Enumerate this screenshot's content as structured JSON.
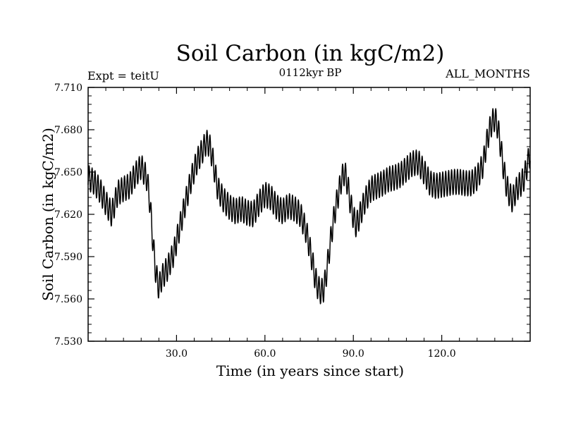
{
  "chart_data": {
    "type": "line",
    "title": "Soil Carbon (in kgC/m2)",
    "subtitle": "0112kyr BP",
    "left_label": "Expt = teitU",
    "right_label": "ALL_MONTHS",
    "xlabel": "Time (in years since start)",
    "ylabel": "Soil Carbon (in kgC/m2)",
    "xlim": [
      0,
      150
    ],
    "ylim": [
      7.53,
      7.71
    ],
    "xticks": [
      30,
      60,
      90,
      120
    ],
    "xtick_labels": [
      "30.0",
      "60.0",
      "90.0",
      "120.0"
    ],
    "yticks": [
      7.53,
      7.56,
      7.59,
      7.62,
      7.65,
      7.68,
      7.71
    ],
    "ytick_labels": [
      "7.530",
      "7.560",
      "7.590",
      "7.620",
      "7.650",
      "7.680",
      "7.710"
    ],
    "grid": false,
    "series": [
      {
        "name": "Soil Carbon",
        "color": "#000000",
        "seasonal_amplitude": 0.009,
        "trend_x": [
          0,
          2,
          4,
          6,
          8,
          10,
          12,
          14,
          16,
          18,
          20,
          21,
          22,
          23,
          24,
          25,
          27,
          29,
          31,
          33,
          35,
          37,
          39,
          40,
          41,
          42,
          43,
          44,
          46,
          48,
          50,
          52,
          54,
          56,
          58,
          60,
          62,
          64,
          66,
          68,
          70,
          72,
          74,
          76,
          77,
          78,
          79,
          80,
          81,
          82,
          83,
          84,
          85,
          86,
          87,
          88,
          89,
          90,
          91,
          92,
          94,
          96,
          98,
          100,
          102,
          104,
          106,
          108,
          110,
          112,
          114,
          116,
          118,
          120,
          122,
          124,
          126,
          128,
          130,
          132,
          134,
          135,
          136,
          137,
          138,
          139,
          140,
          141,
          142,
          143,
          144,
          145,
          146,
          147,
          148,
          149,
          150
        ],
        "trend_y": [
          7.646,
          7.643,
          7.637,
          7.628,
          7.62,
          7.635,
          7.638,
          7.64,
          7.648,
          7.654,
          7.645,
          7.628,
          7.6,
          7.578,
          7.568,
          7.575,
          7.582,
          7.592,
          7.61,
          7.628,
          7.645,
          7.658,
          7.666,
          7.671,
          7.67,
          7.662,
          7.65,
          7.638,
          7.63,
          7.625,
          7.622,
          7.624,
          7.621,
          7.62,
          7.628,
          7.634,
          7.632,
          7.625,
          7.622,
          7.626,
          7.624,
          7.62,
          7.608,
          7.588,
          7.575,
          7.568,
          7.565,
          7.567,
          7.58,
          7.597,
          7.612,
          7.625,
          7.635,
          7.645,
          7.65,
          7.642,
          7.628,
          7.618,
          7.612,
          7.618,
          7.63,
          7.638,
          7.64,
          7.642,
          7.645,
          7.646,
          7.648,
          7.652,
          7.656,
          7.657,
          7.65,
          7.642,
          7.64,
          7.641,
          7.642,
          7.643,
          7.643,
          7.642,
          7.642,
          7.646,
          7.655,
          7.668,
          7.678,
          7.685,
          7.688,
          7.682,
          7.668,
          7.652,
          7.64,
          7.634,
          7.63,
          7.636,
          7.64,
          7.642,
          7.646,
          7.655,
          7.663
        ]
      }
    ]
  }
}
